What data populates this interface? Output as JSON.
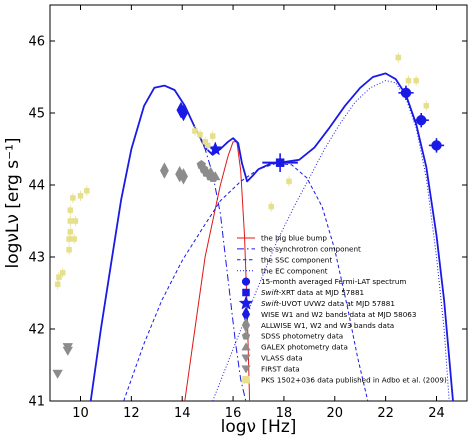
{
  "chart_data": {
    "type": "scatter",
    "title": "",
    "xlabel": "logν [Hz]",
    "ylabel": "logνLν [erg s⁻¹]",
    "xlim": [
      8.8,
      25.2
    ],
    "ylim": [
      41,
      46.5
    ],
    "x_ticks": [
      10,
      12,
      14,
      16,
      18,
      20,
      22,
      24
    ],
    "y_ticks": [
      41,
      42,
      43,
      44,
      45,
      46
    ],
    "grid": false,
    "legend_position": "lower-right",
    "colors": {
      "model": "#1a1ae6",
      "bigbluebump": "#e01818",
      "fermi": "#1a1ae6",
      "archival": "#8c8c8c",
      "adbo": "#e6e08c"
    },
    "legend": [
      {
        "label": "the big blue bump",
        "kind": "line-solid",
        "color": "#e01818"
      },
      {
        "label": "the synchrotron component",
        "kind": "line-dashdot",
        "color": "#1a1ae6"
      },
      {
        "label": "the SSC component",
        "kind": "line-dashed",
        "color": "#1a1ae6"
      },
      {
        "label": "the EC component",
        "kind": "line-dotted",
        "color": "#1a1ae6"
      },
      {
        "label": "15-month averaged Fermi-LAT spectrum",
        "kind": "circle",
        "color": "#1a1ae6"
      },
      {
        "label_italic": "Swift",
        "label": "-XRT data at MJD 57881",
        "kind": "square",
        "color": "#1a1ae6"
      },
      {
        "label_italic": "Swift",
        "label": "-UVOT UVW2 data at MJD 57881",
        "kind": "star",
        "color": "#1a1ae6"
      },
      {
        "label": "WISE W1 and W2 bands data at MJD 58063",
        "kind": "thin-diamond",
        "color": "#1a1ae6"
      },
      {
        "label": "ALLWISE W1, W2 and W3 bands data",
        "kind": "thin-diamond",
        "color": "#8c8c8c"
      },
      {
        "label": "SDSS photometry data",
        "kind": "pentagon",
        "color": "#8c8c8c"
      },
      {
        "label": "GALEX photometry data",
        "kind": "triangle-up",
        "color": "#8c8c8c"
      },
      {
        "label": "VLASS data",
        "kind": "triangle-down",
        "color": "#8c8c8c"
      },
      {
        "label": "FIRST data",
        "kind": "triangle-down",
        "color": "#8c8c8c"
      },
      {
        "label": "PKS 1502+036 data published in Adbo et al. (2009)",
        "kind": "square",
        "color": "#e6e08c"
      }
    ],
    "series": [
      {
        "name": "the big blue bump",
        "kind": "line",
        "style": "solid",
        "x": [
          14.1,
          14.5,
          14.9,
          15.2,
          15.5,
          15.8,
          16.0,
          16.15,
          16.3,
          16.45,
          16.55,
          16.65
        ],
        "y": [
          41.0,
          42.0,
          43.0,
          43.5,
          44.0,
          44.4,
          44.6,
          44.6,
          44.2,
          43.3,
          42.3,
          41.0
        ]
      },
      {
        "name": "the synchrotron component",
        "kind": "line",
        "style": "dashdot",
        "x": [
          10.4,
          10.8,
          11.2,
          11.6,
          12.0,
          12.5,
          12.9,
          13.3,
          13.7,
          14.1,
          14.5,
          14.9,
          15.2,
          15.5,
          15.7,
          15.9,
          16.1,
          16.3,
          16.5
        ],
        "y": [
          41.0,
          42.0,
          42.9,
          43.8,
          44.5,
          45.1,
          45.35,
          45.38,
          45.32,
          45.1,
          44.8,
          44.5,
          44.15,
          43.6,
          43.0,
          42.4,
          41.8,
          41.3,
          41.0
        ]
      },
      {
        "name": "the SSC component",
        "kind": "line",
        "style": "dashed",
        "x": [
          11.7,
          12.5,
          13.2,
          14.0,
          14.8,
          15.5,
          16.3,
          17.0,
          17.7,
          18.3,
          18.9,
          19.5,
          20.0,
          20.5,
          20.9,
          21.3
        ],
        "y": [
          41.0,
          41.8,
          42.4,
          42.95,
          43.4,
          43.78,
          44.05,
          44.22,
          44.3,
          44.28,
          44.1,
          43.7,
          43.1,
          42.3,
          41.6,
          41.0
        ]
      },
      {
        "name": "the EC component",
        "kind": "line",
        "style": "dotted",
        "x": [
          15.2,
          16.2,
          17.0,
          17.7,
          18.4,
          19.0,
          19.6,
          20.2,
          20.8,
          21.4,
          22.0,
          22.4,
          22.8,
          23.2,
          23.6,
          24.0,
          24.3,
          24.5
        ],
        "y": [
          41.0,
          41.9,
          42.6,
          43.2,
          43.7,
          44.1,
          44.5,
          44.85,
          45.15,
          45.35,
          45.45,
          45.42,
          45.2,
          44.8,
          44.1,
          43.0,
          42.0,
          41.0
        ]
      },
      {
        "name": "total",
        "kind": "line",
        "style": "solid-thick",
        "x": [
          10.4,
          10.8,
          11.2,
          11.6,
          12.0,
          12.5,
          12.9,
          13.3,
          13.7,
          14.1,
          14.5,
          14.9,
          15.2,
          15.5,
          15.8,
          16.0,
          16.2,
          16.35,
          16.55,
          16.75,
          17.0,
          17.5,
          18.0,
          18.6,
          19.2,
          19.8,
          20.4,
          21.0,
          21.5,
          22.0,
          22.4,
          22.8,
          23.2,
          23.6,
          24.0,
          24.3,
          24.5,
          24.6,
          24.65
        ],
        "y": [
          41.0,
          42.0,
          42.9,
          43.8,
          44.5,
          45.1,
          45.35,
          45.38,
          45.32,
          45.1,
          44.8,
          44.52,
          44.42,
          44.5,
          44.6,
          44.65,
          44.58,
          44.3,
          44.05,
          44.12,
          44.22,
          44.3,
          44.32,
          44.35,
          44.52,
          44.8,
          45.1,
          45.35,
          45.5,
          45.55,
          45.47,
          45.25,
          44.85,
          44.25,
          43.3,
          42.4,
          41.6,
          41.2,
          41.0
        ]
      },
      {
        "name": "15-month averaged Fermi-LAT spectrum",
        "kind": "circle",
        "points": [
          {
            "x": 22.8,
            "y": 45.28,
            "xerr": 0.3,
            "yerr": 0.1
          },
          {
            "x": 23.4,
            "y": 44.9,
            "xerr": 0.3,
            "yerr": 0.1
          },
          {
            "x": 24.0,
            "y": 44.55,
            "xerr": 0.3,
            "yerr": 0.1
          }
        ]
      },
      {
        "name": "Swift-XRT data at MJD 57881",
        "kind": "square",
        "points": [
          {
            "x": 17.85,
            "y": 44.31,
            "xerr": 0.7,
            "yerr": 0.13
          }
        ]
      },
      {
        "name": "Swift-UVOT UVW2 data at MJD 57881",
        "kind": "star",
        "points": [
          {
            "x": 15.3,
            "y": 44.5,
            "xerr": 0,
            "yerr": 0
          }
        ]
      },
      {
        "name": "WISE W1 and W2 bands data at MJD 58063",
        "kind": "thin-diamond",
        "points": [
          {
            "x": 13.95,
            "y": 45.04,
            "xerr": 0,
            "yerr": 0
          },
          {
            "x": 14.05,
            "y": 45.0,
            "xerr": 0,
            "yerr": 0
          }
        ]
      },
      {
        "name": "ALLWISE W1, W2 and W3 bands data",
        "kind": "thin-diamond",
        "color": "#8c8c8c",
        "points": [
          {
            "x": 13.3,
            "y": 44.2
          },
          {
            "x": 13.9,
            "y": 44.15
          },
          {
            "x": 14.05,
            "y": 44.12
          }
        ]
      },
      {
        "name": "SDSS photometry data",
        "kind": "pentagon",
        "color": "#8c8c8c",
        "points": [
          {
            "x": 14.75,
            "y": 44.28
          },
          {
            "x": 14.85,
            "y": 44.22
          },
          {
            "x": 14.95,
            "y": 44.17
          },
          {
            "x": 15.1,
            "y": 44.12
          },
          {
            "x": 15.22,
            "y": 44.1
          }
        ]
      },
      {
        "name": "GALEX photometry data",
        "kind": "triangle-up",
        "color": "#8c8c8c",
        "points": [
          {
            "x": 15.12,
            "y": 44.18
          },
          {
            "x": 15.3,
            "y": 44.12
          }
        ]
      },
      {
        "name": "VLASS data",
        "kind": "triangle-down",
        "color": "#8c8c8c",
        "points": [
          {
            "x": 9.5,
            "y": 41.75
          },
          {
            "x": 9.5,
            "y": 41.7
          }
        ]
      },
      {
        "name": "FIRST data",
        "kind": "triangle-down",
        "color": "#8c8c8c",
        "points": [
          {
            "x": 9.1,
            "y": 41.38
          }
        ]
      },
      {
        "name": "PKS 1502+036 data published in Adbo et al. (2009)",
        "kind": "square",
        "color": "#e6e08c",
        "points": [
          {
            "x": 9.1,
            "y": 42.62
          },
          {
            "x": 9.15,
            "y": 42.72
          },
          {
            "x": 9.3,
            "y": 42.78
          },
          {
            "x": 9.55,
            "y": 43.1
          },
          {
            "x": 9.55,
            "y": 43.25
          },
          {
            "x": 9.6,
            "y": 43.35
          },
          {
            "x": 9.75,
            "y": 43.25
          },
          {
            "x": 9.6,
            "y": 43.5
          },
          {
            "x": 9.8,
            "y": 43.5
          },
          {
            "x": 9.6,
            "y": 43.65
          },
          {
            "x": 9.7,
            "y": 43.82
          },
          {
            "x": 10.0,
            "y": 43.85
          },
          {
            "x": 10.25,
            "y": 43.92
          },
          {
            "x": 14.5,
            "y": 44.75
          },
          {
            "x": 14.7,
            "y": 44.7
          },
          {
            "x": 14.9,
            "y": 44.6
          },
          {
            "x": 15.0,
            "y": 44.55
          },
          {
            "x": 15.2,
            "y": 44.68
          },
          {
            "x": 17.5,
            "y": 43.7
          },
          {
            "x": 18.2,
            "y": 44.05
          },
          {
            "x": 22.5,
            "y": 45.77
          },
          {
            "x": 22.9,
            "y": 45.45
          },
          {
            "x": 23.2,
            "y": 45.45
          },
          {
            "x": 23.6,
            "y": 45.1
          }
        ],
        "yerr": 0.07
      }
    ]
  }
}
